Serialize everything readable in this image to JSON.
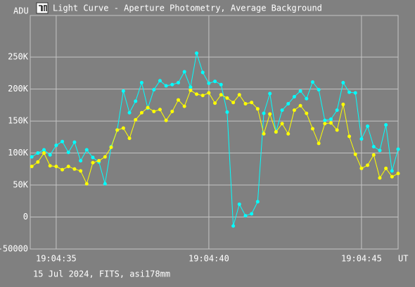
{
  "chart_data": {
    "type": "line",
    "title": "Light Curve - Aperture Photometry, Average Background",
    "y_label": "ADU",
    "x_label": "UT",
    "footer": "15 Jul 2024, FITS, asi178mm",
    "x": [
      34.2,
      34.4,
      34.6,
      34.8,
      35.0,
      35.2,
      35.4,
      35.6,
      35.8,
      36.0,
      36.2,
      36.4,
      36.6,
      36.8,
      37.0,
      37.2,
      37.4,
      37.6,
      37.8,
      38.0,
      38.2,
      38.4,
      38.6,
      38.8,
      39.0,
      39.2,
      39.4,
      39.6,
      39.8,
      40.0,
      40.2,
      40.4,
      40.6,
      40.8,
      41.0,
      41.2,
      41.4,
      41.6,
      41.8,
      42.0,
      42.2,
      42.4,
      42.6,
      42.8,
      43.0,
      43.2,
      43.4,
      43.6,
      43.8,
      44.0,
      44.2,
      44.4,
      44.6,
      44.8,
      45.0,
      45.2,
      45.4,
      45.6,
      45.8,
      46.0,
      46.2
    ],
    "series": [
      {
        "color": "#00ffff",
        "values": [
          94000,
          100000,
          105000,
          97000,
          112000,
          118000,
          101000,
          117000,
          88000,
          105000,
          93000,
          86000,
          52000,
          110000,
          136000,
          197000,
          163000,
          181000,
          210000,
          170000,
          199000,
          213000,
          205000,
          207000,
          210000,
          227000,
          203000,
          256000,
          226000,
          209000,
          212000,
          207000,
          164000,
          -14000,
          20000,
          2000,
          5000,
          24000,
          162000,
          193000,
          133000,
          167000,
          177000,
          188000,
          197000,
          185000,
          211000,
          199000,
          151000,
          153000,
          167000,
          210000,
          195000,
          194000,
          122000,
          142000,
          110000,
          104000,
          144000,
          72000,
          106000
        ]
      },
      {
        "color": "#ffff00",
        "values": [
          79000,
          86000,
          100000,
          80000,
          79000,
          74000,
          79000,
          75000,
          72000,
          52000,
          85000,
          88000,
          94000,
          109000,
          136000,
          139000,
          123000,
          152000,
          163000,
          171000,
          165000,
          168000,
          151000,
          165000,
          183000,
          173000,
          198000,
          192000,
          190000,
          194000,
          178000,
          191000,
          186000,
          179000,
          191000,
          177000,
          179000,
          169000,
          130000,
          161000,
          133000,
          146000,
          130000,
          167000,
          174000,
          162000,
          138000,
          115000,
          146000,
          147000,
          136000,
          176000,
          126000,
          98000,
          76000,
          81000,
          97000,
          61000,
          76000,
          63000,
          68000
        ]
      }
    ],
    "xlim": [
      34.15,
      46.2
    ],
    "xticks": [
      {
        "value": 35,
        "label": "19:04:35"
      },
      {
        "value": 40,
        "label": "19:04:40"
      },
      {
        "value": 45,
        "label": "19:04:45"
      }
    ],
    "ylim": [
      -50000,
      315000
    ],
    "yticks": [
      -50000,
      0,
      {
        "value": 50000,
        "label": "50K"
      },
      {
        "value": 100000,
        "label": "100K"
      },
      {
        "value": 150000,
        "label": "150K"
      },
      {
        "value": 200000,
        "label": "200K"
      },
      {
        "value": 250000,
        "label": "250K"
      }
    ],
    "grid": true
  }
}
